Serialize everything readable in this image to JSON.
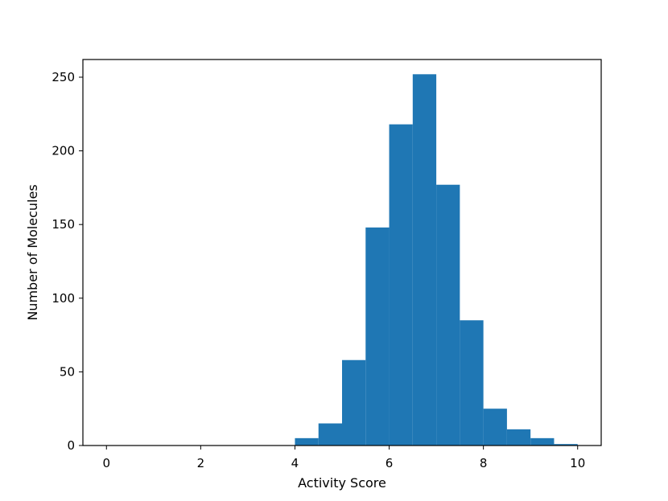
{
  "chart_data": {
    "type": "bar",
    "title": "",
    "xlabel": "Activity Score",
    "ylabel": "Number of Molecules",
    "xlim": [
      -0.5,
      10.5
    ],
    "ylim": [
      0,
      262
    ],
    "xticks": [
      0,
      2,
      4,
      6,
      8,
      10
    ],
    "yticks": [
      0,
      50,
      100,
      150,
      200,
      250
    ],
    "bin_width": 0.5,
    "bin_starts": [
      0,
      0.5,
      1,
      1.5,
      2,
      2.5,
      3,
      3.5,
      4,
      4.5,
      5,
      5.5,
      6,
      6.5,
      7,
      7.5,
      8,
      8.5,
      9,
      9.5
    ],
    "values": [
      0,
      0,
      0,
      0,
      0,
      0,
      0,
      0,
      5,
      15,
      58,
      148,
      218,
      252,
      177,
      85,
      25,
      11,
      5,
      1
    ],
    "bar_color": "#1f77b4",
    "grid": false,
    "legend": "none"
  }
}
